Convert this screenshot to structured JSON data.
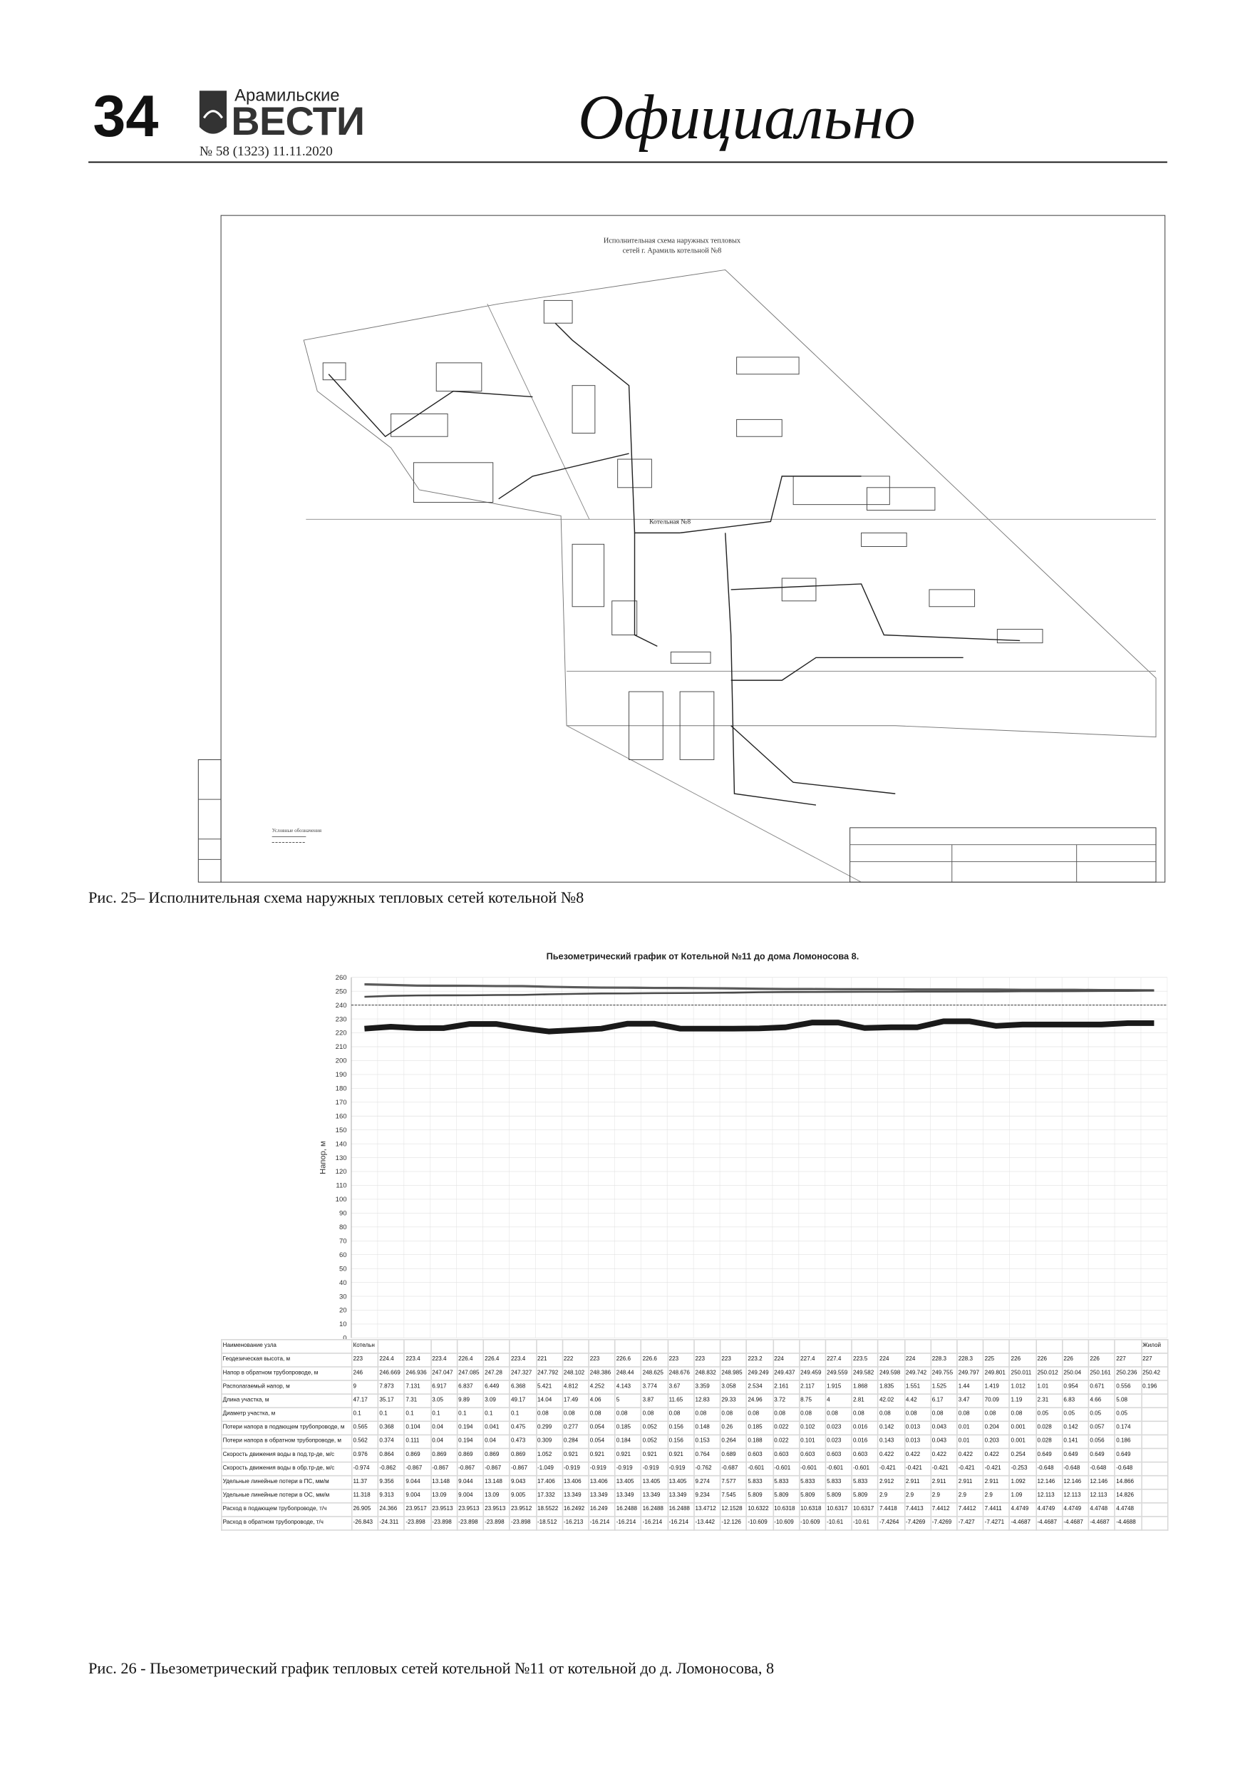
{
  "header": {
    "page_number": "34",
    "masthead_top": "Арамильские",
    "masthead": "ВЕСТИ",
    "issue": "№ 58 (1323) 11.11.2020",
    "section": "Официально"
  },
  "figure1": {
    "title": [
      "Исполнительная схема наружных тепловых",
      "сетей г. Арамиль котельной №8"
    ],
    "boiler_label": "Котельная №8",
    "legend_title": "Условные обозначения",
    "caption": "Рис. 25– Исполнительная схема наружных тепловых сетей котельной №8"
  },
  "chart_data": {
    "type": "line",
    "title": "Пьезометрический график от Котельной №11 до дома Ломоносова 8.",
    "y_label": "Напор, м",
    "ylim": [
      0,
      260
    ],
    "yticks": [
      0,
      10,
      20,
      30,
      40,
      50,
      60,
      70,
      80,
      90,
      100,
      110,
      120,
      130,
      140,
      150,
      160,
      170,
      180,
      190,
      200,
      210,
      220,
      230,
      240,
      250,
      260
    ],
    "grid": true,
    "category_label": "Наименование узла",
    "categories": [
      "Котельн",
      null,
      null,
      null,
      null,
      null,
      null,
      null,
      null,
      null,
      null,
      null,
      null,
      null,
      null,
      null,
      null,
      null,
      null,
      null,
      null,
      null,
      null,
      null,
      null,
      null,
      null,
      null,
      null,
      null,
      "Жилой"
    ],
    "series": [
      {
        "color": "#5a5a5a",
        "width": 2,
        "values": [
          255,
          254.542,
          254.067,
          253.964,
          253.922,
          253.729,
          253.695,
          253.213,
          252.914,
          252.638,
          252.583,
          252.399,
          252.346,
          252.191,
          252.043,
          251.783,
          251.598,
          251.576,
          251.474,
          251.45,
          251.433,
          251.293,
          251.28,
          251.237,
          251.22,
          251.023,
          251.022,
          250.994,
          250.832,
          250.792,
          250.616
        ]
      },
      {
        "color": "#4a4a4a",
        "width": 1.6,
        "values": [
          246,
          246.669,
          246.936,
          247.047,
          247.085,
          247.28,
          247.327,
          247.792,
          248.102,
          248.386,
          248.44,
          248.625,
          248.676,
          248.832,
          248.985,
          249.249,
          249.437,
          249.459,
          249.559,
          249.582,
          249.598,
          249.742,
          249.755,
          249.797,
          249.801,
          250.011,
          250.012,
          250.04,
          250.161,
          250.236,
          250.42
        ]
      },
      {
        "color": "#1a1a1a",
        "width": 5,
        "values": [
          223,
          224.4,
          223.4,
          223.4,
          226.4,
          226.4,
          223.4,
          221,
          222,
          223,
          226.6,
          226.6,
          223,
          223,
          223,
          223.2,
          224,
          227.4,
          227.4,
          223.5,
          224,
          224,
          228.3,
          228.3,
          225,
          226,
          226,
          226,
          226,
          227,
          227
        ]
      }
    ],
    "reference_lines": [
      {
        "value": 240,
        "color": "#333"
      }
    ],
    "table": [
      {
        "label": "Геодезическая высота, м",
        "values": [
          223,
          224.4,
          223.4,
          223.4,
          226.4,
          226.4,
          223.4,
          221,
          222,
          223,
          226.6,
          226.6,
          223,
          223,
          223,
          223.2,
          224,
          227.4,
          227.4,
          223.5,
          224,
          224,
          228.3,
          228.3,
          225,
          226,
          226,
          226,
          226,
          227,
          227
        ]
      },
      {
        "label": "Напор в обратном трубопроводе, м",
        "values": [
          246,
          246.669,
          246.936,
          247.047,
          247.085,
          247.28,
          247.327,
          247.792,
          248.102,
          248.386,
          248.44,
          248.625,
          248.676,
          248.832,
          248.985,
          249.249,
          249.437,
          249.459,
          249.559,
          249.582,
          249.598,
          249.742,
          249.755,
          249.797,
          249.801,
          250.011,
          250.012,
          250.04,
          250.161,
          250.236,
          250.42
        ]
      },
      {
        "label": "Располагаемый напор, м",
        "values": [
          9,
          7.873,
          7.131,
          6.917,
          6.837,
          6.449,
          6.368,
          5.421,
          4.812,
          4.252,
          4.143,
          3.774,
          3.67,
          3.359,
          3.058,
          2.534,
          2.161,
          2.117,
          1.915,
          1.868,
          1.835,
          1.551,
          1.525,
          1.44,
          1.419,
          1.012,
          1.01,
          0.954,
          0.671,
          0.556,
          0.196
        ]
      },
      {
        "label": "Длина участка, м",
        "values": [
          47.17,
          35.17,
          7.31,
          3.05,
          9.89,
          3.09,
          49.17,
          14.04,
          17.49,
          4.06,
          5,
          3.87,
          11.65,
          12.83,
          29.33,
          24.96,
          3.72,
          8.75,
          4,
          2.81,
          42.02,
          4.42,
          6.17,
          3.47,
          70.09,
          1.19,
          2.31,
          6.83,
          4.66,
          5.08,
          null
        ]
      },
      {
        "label": "Диаметр участка, м",
        "values": [
          0.1,
          0.1,
          0.1,
          0.1,
          0.1,
          0.1,
          0.1,
          0.08,
          0.08,
          0.08,
          0.08,
          0.08,
          0.08,
          0.08,
          0.08,
          0.08,
          0.08,
          0.08,
          0.08,
          0.08,
          0.08,
          0.08,
          0.08,
          0.08,
          0.08,
          0.08,
          0.05,
          0.05,
          0.05,
          0.05,
          null
        ]
      },
      {
        "label": "Потери напора в подающем трубопроводе, м",
        "values": [
          0.565,
          0.368,
          0.104,
          0.04,
          0.194,
          0.041,
          0.475,
          0.299,
          0.277,
          0.054,
          0.185,
          0.052,
          0.156,
          0.148,
          0.26,
          0.185,
          0.022,
          0.102,
          0.023,
          0.016,
          0.142,
          0.013,
          0.043,
          0.01,
          0.204,
          0.001,
          0.028,
          0.142,
          0.057,
          0.174,
          null
        ]
      },
      {
        "label": "Потери напора в обратном трубопроводе, м",
        "values": [
          0.562,
          0.374,
          0.111,
          0.04,
          0.194,
          0.04,
          0.473,
          0.309,
          0.284,
          0.054,
          0.184,
          0.052,
          0.156,
          0.153,
          0.264,
          0.188,
          0.022,
          0.101,
          0.023,
          0.016,
          0.143,
          0.013,
          0.043,
          0.01,
          0.203,
          0.001,
          0.028,
          0.141,
          0.056,
          0.186,
          null
        ]
      },
      {
        "label": "Скорость движения воды в под.тр-де, м/с",
        "values": [
          0.976,
          0.864,
          0.869,
          0.869,
          0.869,
          0.869,
          0.869,
          1.052,
          0.921,
          0.921,
          0.921,
          0.921,
          0.921,
          0.764,
          0.689,
          0.603,
          0.603,
          0.603,
          0.603,
          0.603,
          0.422,
          0.422,
          0.422,
          0.422,
          0.422,
          0.254,
          0.649,
          0.649,
          0.649,
          0.649,
          null
        ]
      },
      {
        "label": "Скорость движения воды в обр.тр-де, м/с",
        "values": [
          -0.974,
          -0.862,
          -0.867,
          -0.867,
          -0.867,
          -0.867,
          -0.867,
          -1.049,
          -0.919,
          -0.919,
          -0.919,
          -0.919,
          -0.919,
          -0.762,
          -0.687,
          -0.601,
          -0.601,
          -0.601,
          -0.601,
          -0.601,
          -0.421,
          -0.421,
          -0.421,
          -0.421,
          -0.421,
          -0.253,
          -0.648,
          -0.648,
          -0.648,
          -0.648,
          null
        ]
      },
      {
        "label": "Удельные линейные потери в ПС, мм/м",
        "values": [
          11.37,
          9.356,
          9.044,
          13.148,
          9.044,
          13.148,
          9.043,
          17.406,
          13.406,
          13.406,
          13.405,
          13.405,
          13.405,
          9.274,
          7.577,
          5.833,
          5.833,
          5.833,
          5.833,
          5.833,
          2.912,
          2.911,
          2.911,
          2.911,
          2.911,
          1.092,
          12.146,
          12.146,
          12.146,
          14.866,
          null
        ]
      },
      {
        "label": "Удельные линейные потери в ОС, мм/м",
        "values": [
          11.318,
          9.313,
          9.004,
          13.09,
          9.004,
          13.09,
          9.005,
          17.332,
          13.349,
          13.349,
          13.349,
          13.349,
          13.349,
          9.234,
          7.545,
          5.809,
          5.809,
          5.809,
          5.809,
          5.809,
          2.9,
          2.9,
          2.9,
          2.9,
          2.9,
          1.09,
          12.113,
          12.113,
          12.113,
          14.826,
          null
        ]
      },
      {
        "label": "Расход в подающем трубопроводе, т/ч",
        "values": [
          26.905,
          24.366,
          23.9517,
          23.9513,
          23.9513,
          23.9513,
          23.9512,
          18.5522,
          16.2492,
          16.249,
          16.2488,
          16.2488,
          16.2488,
          13.4712,
          12.1528,
          10.6322,
          10.6318,
          10.6318,
          10.6317,
          10.6317,
          7.4418,
          7.4413,
          7.4412,
          7.4412,
          7.4411,
          4.4749,
          4.4749,
          4.4749,
          4.4748,
          4.4748,
          null
        ]
      },
      {
        "label": "Расход в обратном трубопроводе, т/ч",
        "values": [
          -26.843,
          -24.311,
          -23.898,
          -23.898,
          -23.898,
          -23.898,
          -23.898,
          -18.512,
          -16.213,
          -16.214,
          -16.214,
          -16.214,
          -16.214,
          -13.442,
          -12.126,
          -10.609,
          -10.609,
          -10.609,
          -10.61,
          -10.61,
          -7.4264,
          -7.4269,
          -7.4269,
          -7.427,
          -7.4271,
          -4.4687,
          -4.4687,
          -4.4687,
          -4.4687,
          -4.4688,
          null
        ]
      }
    ]
  },
  "figure2": {
    "caption": "Рис. 26 - Пьезометрический график тепловых сетей котельной №11 от котельной до д. Ломоносова, 8"
  }
}
